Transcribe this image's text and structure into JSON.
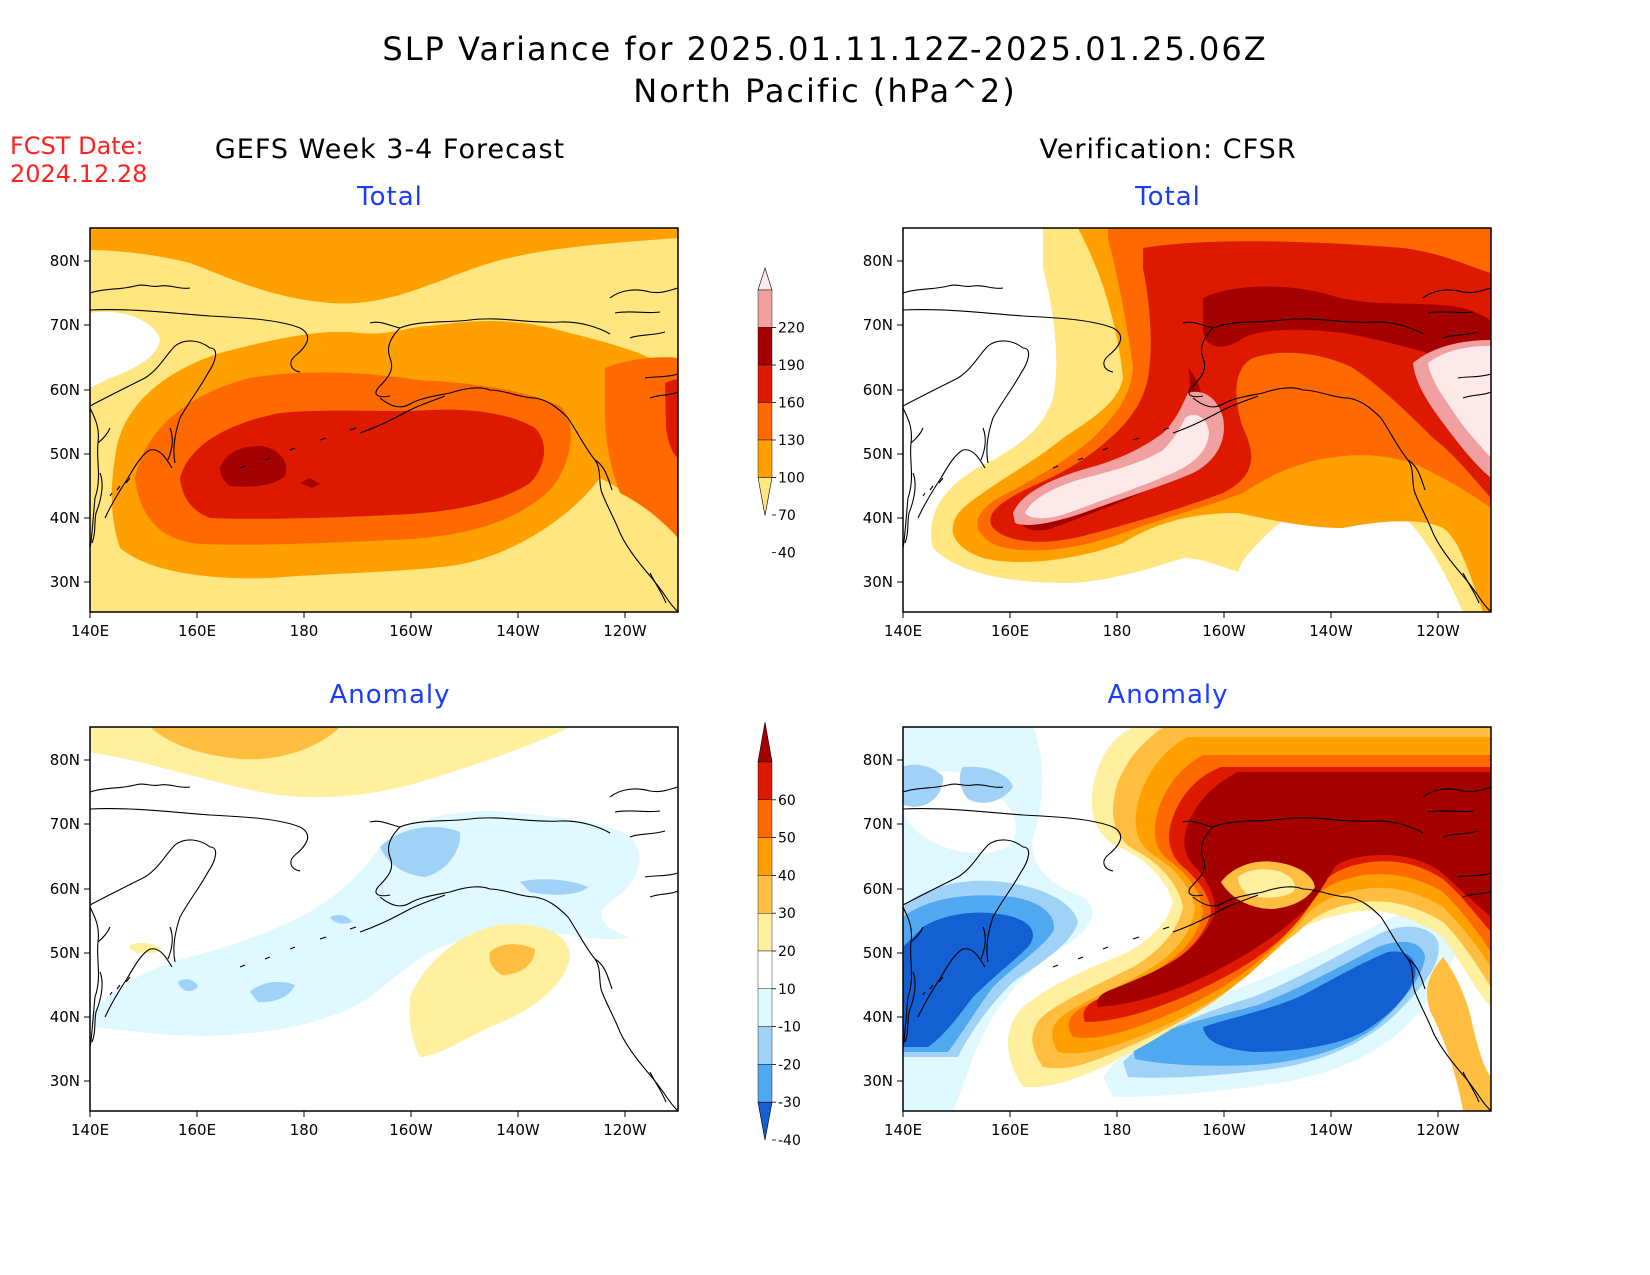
{
  "header": {
    "title_line1": "SLP Variance for 2025.01.11.12Z-2025.01.25.06Z",
    "title_line2": "North Pacific (hPa^2)"
  },
  "fcst": {
    "label": "FCST Date:",
    "date": "2024.12.28"
  },
  "columns": {
    "left": "GEFS Week 3-4 Forecast",
    "right": "Verification: CFSR"
  },
  "panels": {
    "top_left": "Total",
    "top_right": "Total",
    "bottom_left": "Anomaly",
    "bottom_right": "Anomaly"
  },
  "axes": {
    "lon_labels": [
      "140E",
      "160E",
      "180",
      "160W",
      "140W",
      "120W"
    ],
    "lat_labels": [
      "80N",
      "70N",
      "60N",
      "50N",
      "40N",
      "30N"
    ]
  },
  "colorbars": {
    "total": {
      "labels": [
        "220",
        "190",
        "160",
        "130",
        "100",
        "70",
        "40"
      ],
      "colors": [
        "#fde9e9",
        "#f0a0a0",
        "#a50000",
        "#dd1a00",
        "#ff6a00",
        "#ffa000",
        "#ffe680"
      ]
    },
    "anomaly": {
      "labels": [
        "60",
        "50",
        "40",
        "30",
        "20",
        "10",
        "-10",
        "-20",
        "-30",
        "-40"
      ],
      "colors": [
        "#a50000",
        "#dd1a00",
        "#ff6a00",
        "#ffa000",
        "#ffbe40",
        "#fff0a0",
        "#ffffff",
        "#e0f8ff",
        "#a0d2f8",
        "#50a8f0",
        "#1460d2"
      ]
    }
  },
  "palette": {
    "total": {
      "c40": "#ffe680",
      "c70": "#ffa000",
      "c100": "#ff6a00",
      "c130": "#dd1a00",
      "c160": "#a50000",
      "c190": "#f0a0a0",
      "c220": "#fde9e9"
    },
    "anomaly": {
      "n40": "#1460d2",
      "n30": "#50a8f0",
      "n20": "#a0d2f8",
      "n10": "#e0f8ff",
      "p10": "#fff0a0",
      "p20": "#ffbe40",
      "p30": "#ffa000",
      "p40": "#ff6a00",
      "p50": "#dd1a00",
      "p60": "#a50000"
    }
  }
}
